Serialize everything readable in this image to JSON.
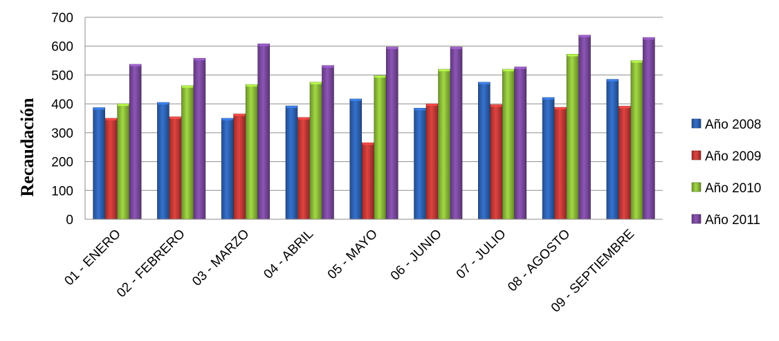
{
  "chart_data": {
    "type": "bar",
    "title": "",
    "xlabel": "",
    "ylabel": "Recaudación",
    "ylim": [
      0,
      700
    ],
    "yticks": [
      0,
      100,
      200,
      300,
      400,
      500,
      600,
      700
    ],
    "grid": true,
    "legend_position": "right",
    "categories": [
      "01 - ENERO",
      "02 - FEBRERO",
      "03 - MARZO",
      "04 - ABRIL",
      "05 - MAYO",
      "06 - JUNIO",
      "07 - JULIO",
      "08 - AGOSTO",
      "09 - SEPTIEMBRE"
    ],
    "series": [
      {
        "name": "Año 2008",
        "color": "#2e63b4",
        "values": [
          387,
          405,
          350,
          393,
          417,
          385,
          475,
          422,
          485
        ]
      },
      {
        "name": "Año 2009",
        "color": "#c43a37",
        "values": [
          350,
          355,
          365,
          353,
          265,
          400,
          397,
          388,
          392
        ]
      },
      {
        "name": "Año 2010",
        "color": "#8dbd3a",
        "values": [
          400,
          463,
          467,
          475,
          498,
          520,
          520,
          572,
          550
        ]
      },
      {
        "name": "Año 2011",
        "color": "#7b4a9f",
        "values": [
          537,
          558,
          608,
          533,
          597,
          597,
          528,
          638,
          630
        ]
      }
    ]
  }
}
